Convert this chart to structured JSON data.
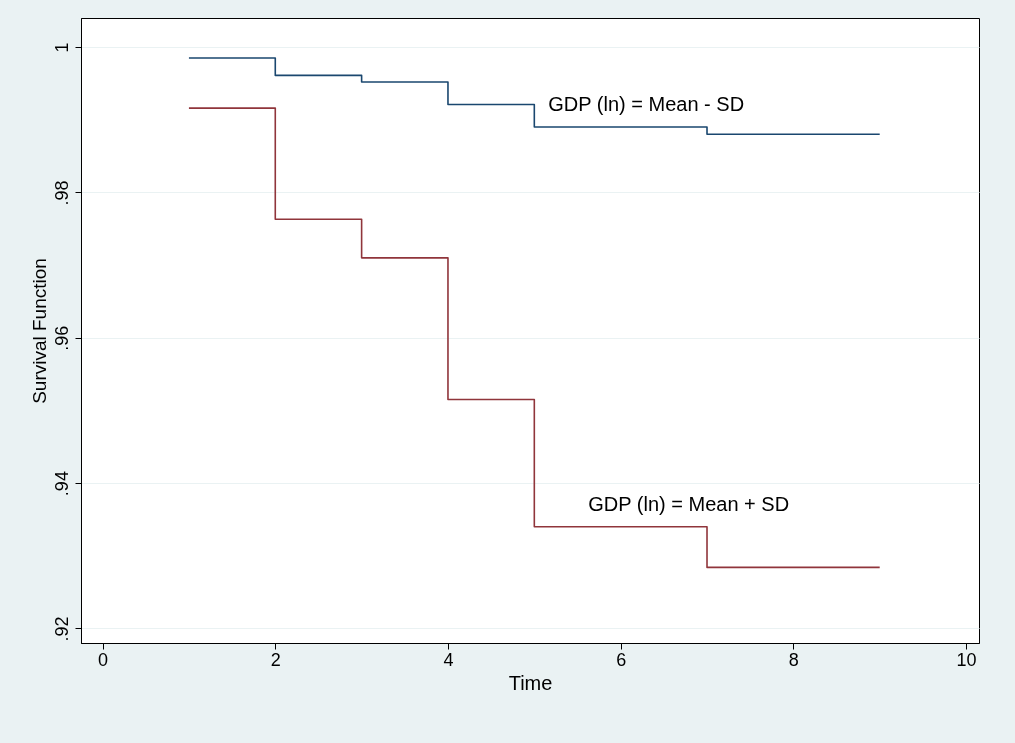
{
  "chart_data": {
    "type": "step",
    "xlabel": "Time",
    "ylabel": "Survival Function",
    "xlim": [
      -0.25,
      10.15
    ],
    "xticks": [
      0,
      2,
      4,
      6,
      8,
      10
    ],
    "ylim": [
      0.918,
      1.004
    ],
    "yticks": [
      {
        "value": 0.92,
        "label": ".92"
      },
      {
        "value": 0.94,
        "label": ".94"
      },
      {
        "value": 0.96,
        "label": ".96"
      },
      {
        "value": 0.98,
        "label": ".98"
      },
      1
    ],
    "grid": "y",
    "legend": false,
    "x": [
      1,
      2,
      3,
      4,
      5,
      7,
      9
    ],
    "series": [
      {
        "name": "GDP (ln) = Mean - SD",
        "color": "#1a476f",
        "values": [
          0.9985,
          0.9961,
          0.9952,
          0.9921,
          0.989,
          0.988,
          0.988
        ]
      },
      {
        "name": "GDP (ln) = Mean + SD",
        "color": "#90353b",
        "values": [
          0.9916,
          0.9763,
          0.971,
          0.9515,
          0.934,
          0.9284,
          0.9284
        ]
      }
    ]
  }
}
